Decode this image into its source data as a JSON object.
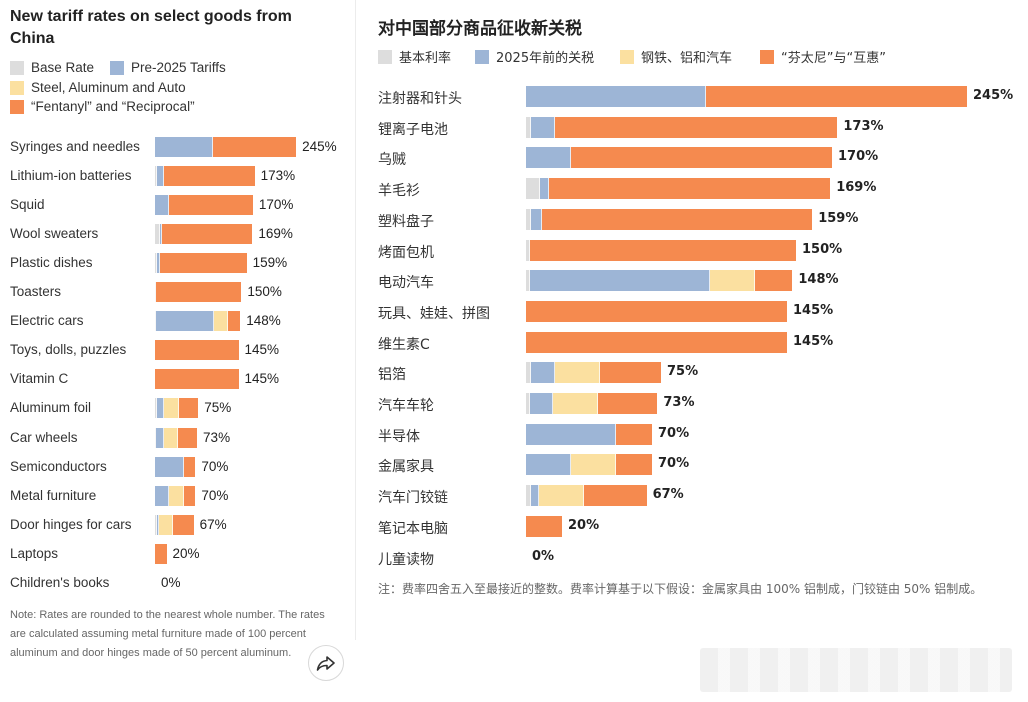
{
  "colors": {
    "base": "#dddddd",
    "pre2025": "#9db5d6",
    "steel": "#fbe0a0",
    "fentanyl": "#f58a4f"
  },
  "left": {
    "title": "New tariff rates on select goods from China",
    "legend": [
      "Base Rate",
      "Pre-2025 Tariffs",
      "Steel, Aluminum and Auto",
      "“Fentanyl” and “Reciprocal”"
    ],
    "note": "Note: Rates are rounded to the nearest whole number. The rates are calculated assuming metal furniture made of 100 percent aluminum and door hinges made of 50 percent aluminum."
  },
  "right": {
    "title": "对中国部分商品征收新关税",
    "legend": [
      "基本利率",
      "2025年前的关税",
      "钢铁、铝和汽车",
      "“芬太尼”与“互惠”"
    ],
    "note": "注：费率四舍五入至最接近的整数。费率计算基于以下假设：金属家具由 100% 铝制成，门铰链由 50% 铝制成。"
  },
  "share_icon": "share-arrow-icon",
  "chart_data": [
    {
      "type": "bar",
      "orientation": "horizontal",
      "stacked": true,
      "title": "New tariff rates on select goods from China",
      "categories": [
        "Syringes and needles",
        "Lithium-ion batteries",
        "Squid",
        "Wool sweaters",
        "Plastic dishes",
        "Toasters",
        "Electric cars",
        "Toys, dolls, puzzles",
        "Vitamin C",
        "Aluminum foil",
        "Car wheels",
        "Semiconductors",
        "Metal furniture",
        "Door hinges for cars",
        "Laptops",
        "Children's books"
      ],
      "labels": [
        "245%",
        "173%",
        "170%",
        "169%",
        "159%",
        "150%",
        "148%",
        "145%",
        "145%",
        "75%",
        "73%",
        "70%",
        "70%",
        "67%",
        "20%",
        "0%"
      ],
      "series": [
        {
          "name": "Base Rate",
          "values": [
            0,
            3,
            0,
            8,
            3,
            2,
            2,
            0,
            0,
            3,
            2,
            0,
            0,
            3,
            0,
            0
          ]
        },
        {
          "name": "Pre-2025 Tariffs",
          "values": [
            100,
            13,
            25,
            5,
            6,
            0,
            100,
            0,
            0,
            13,
            13,
            50,
            25,
            4,
            0,
            0
          ]
        },
        {
          "name": "Steel, Aluminum and Auto",
          "values": [
            0,
            0,
            0,
            0,
            0,
            0,
            25,
            0,
            0,
            25,
            25,
            0,
            25,
            25,
            0,
            0
          ]
        },
        {
          "name": "“Fentanyl” and “Reciprocal”",
          "values": [
            145,
            157,
            145,
            156,
            150,
            148,
            21,
            145,
            145,
            34,
            33,
            20,
            20,
            35,
            20,
            0
          ]
        }
      ],
      "legend": "top-left"
    },
    {
      "type": "bar",
      "orientation": "horizontal",
      "stacked": true,
      "title": "对中国部分商品征收新关税",
      "categories": [
        "注射器和针头",
        "锂离子电池",
        "乌贼",
        "羊毛衫",
        "塑料盘子",
        "烤面包机",
        "电动汽车",
        "玩具、娃娃、拼图",
        "维生素C",
        "铝箔",
        "汽车车轮",
        "半导体",
        "金属家具",
        "汽车门铰链",
        "笔记本电脑",
        "儿童读物"
      ],
      "labels": [
        "245%",
        "173%",
        "170%",
        "169%",
        "159%",
        "150%",
        "148%",
        "145%",
        "145%",
        "75%",
        "73%",
        "70%",
        "70%",
        "67%",
        "20%",
        "0%"
      ],
      "series": [
        {
          "name": "基本利率",
          "values": [
            0,
            3,
            0,
            8,
            3,
            2,
            2,
            0,
            0,
            3,
            2,
            0,
            0,
            3,
            0,
            0
          ]
        },
        {
          "name": "2025年前的关税",
          "values": [
            100,
            13,
            25,
            5,
            6,
            0,
            100,
            0,
            0,
            13,
            13,
            50,
            25,
            4,
            0,
            0
          ]
        },
        {
          "name": "钢铁、铝和汽车",
          "values": [
            0,
            0,
            0,
            0,
            0,
            0,
            25,
            0,
            0,
            25,
            25,
            0,
            25,
            25,
            0,
            0
          ]
        },
        {
          "name": "“芬太尼”与“互惠”",
          "values": [
            145,
            157,
            145,
            156,
            150,
            148,
            21,
            145,
            145,
            34,
            33,
            20,
            20,
            35,
            20,
            0
          ]
        }
      ],
      "legend": "top-left"
    }
  ]
}
